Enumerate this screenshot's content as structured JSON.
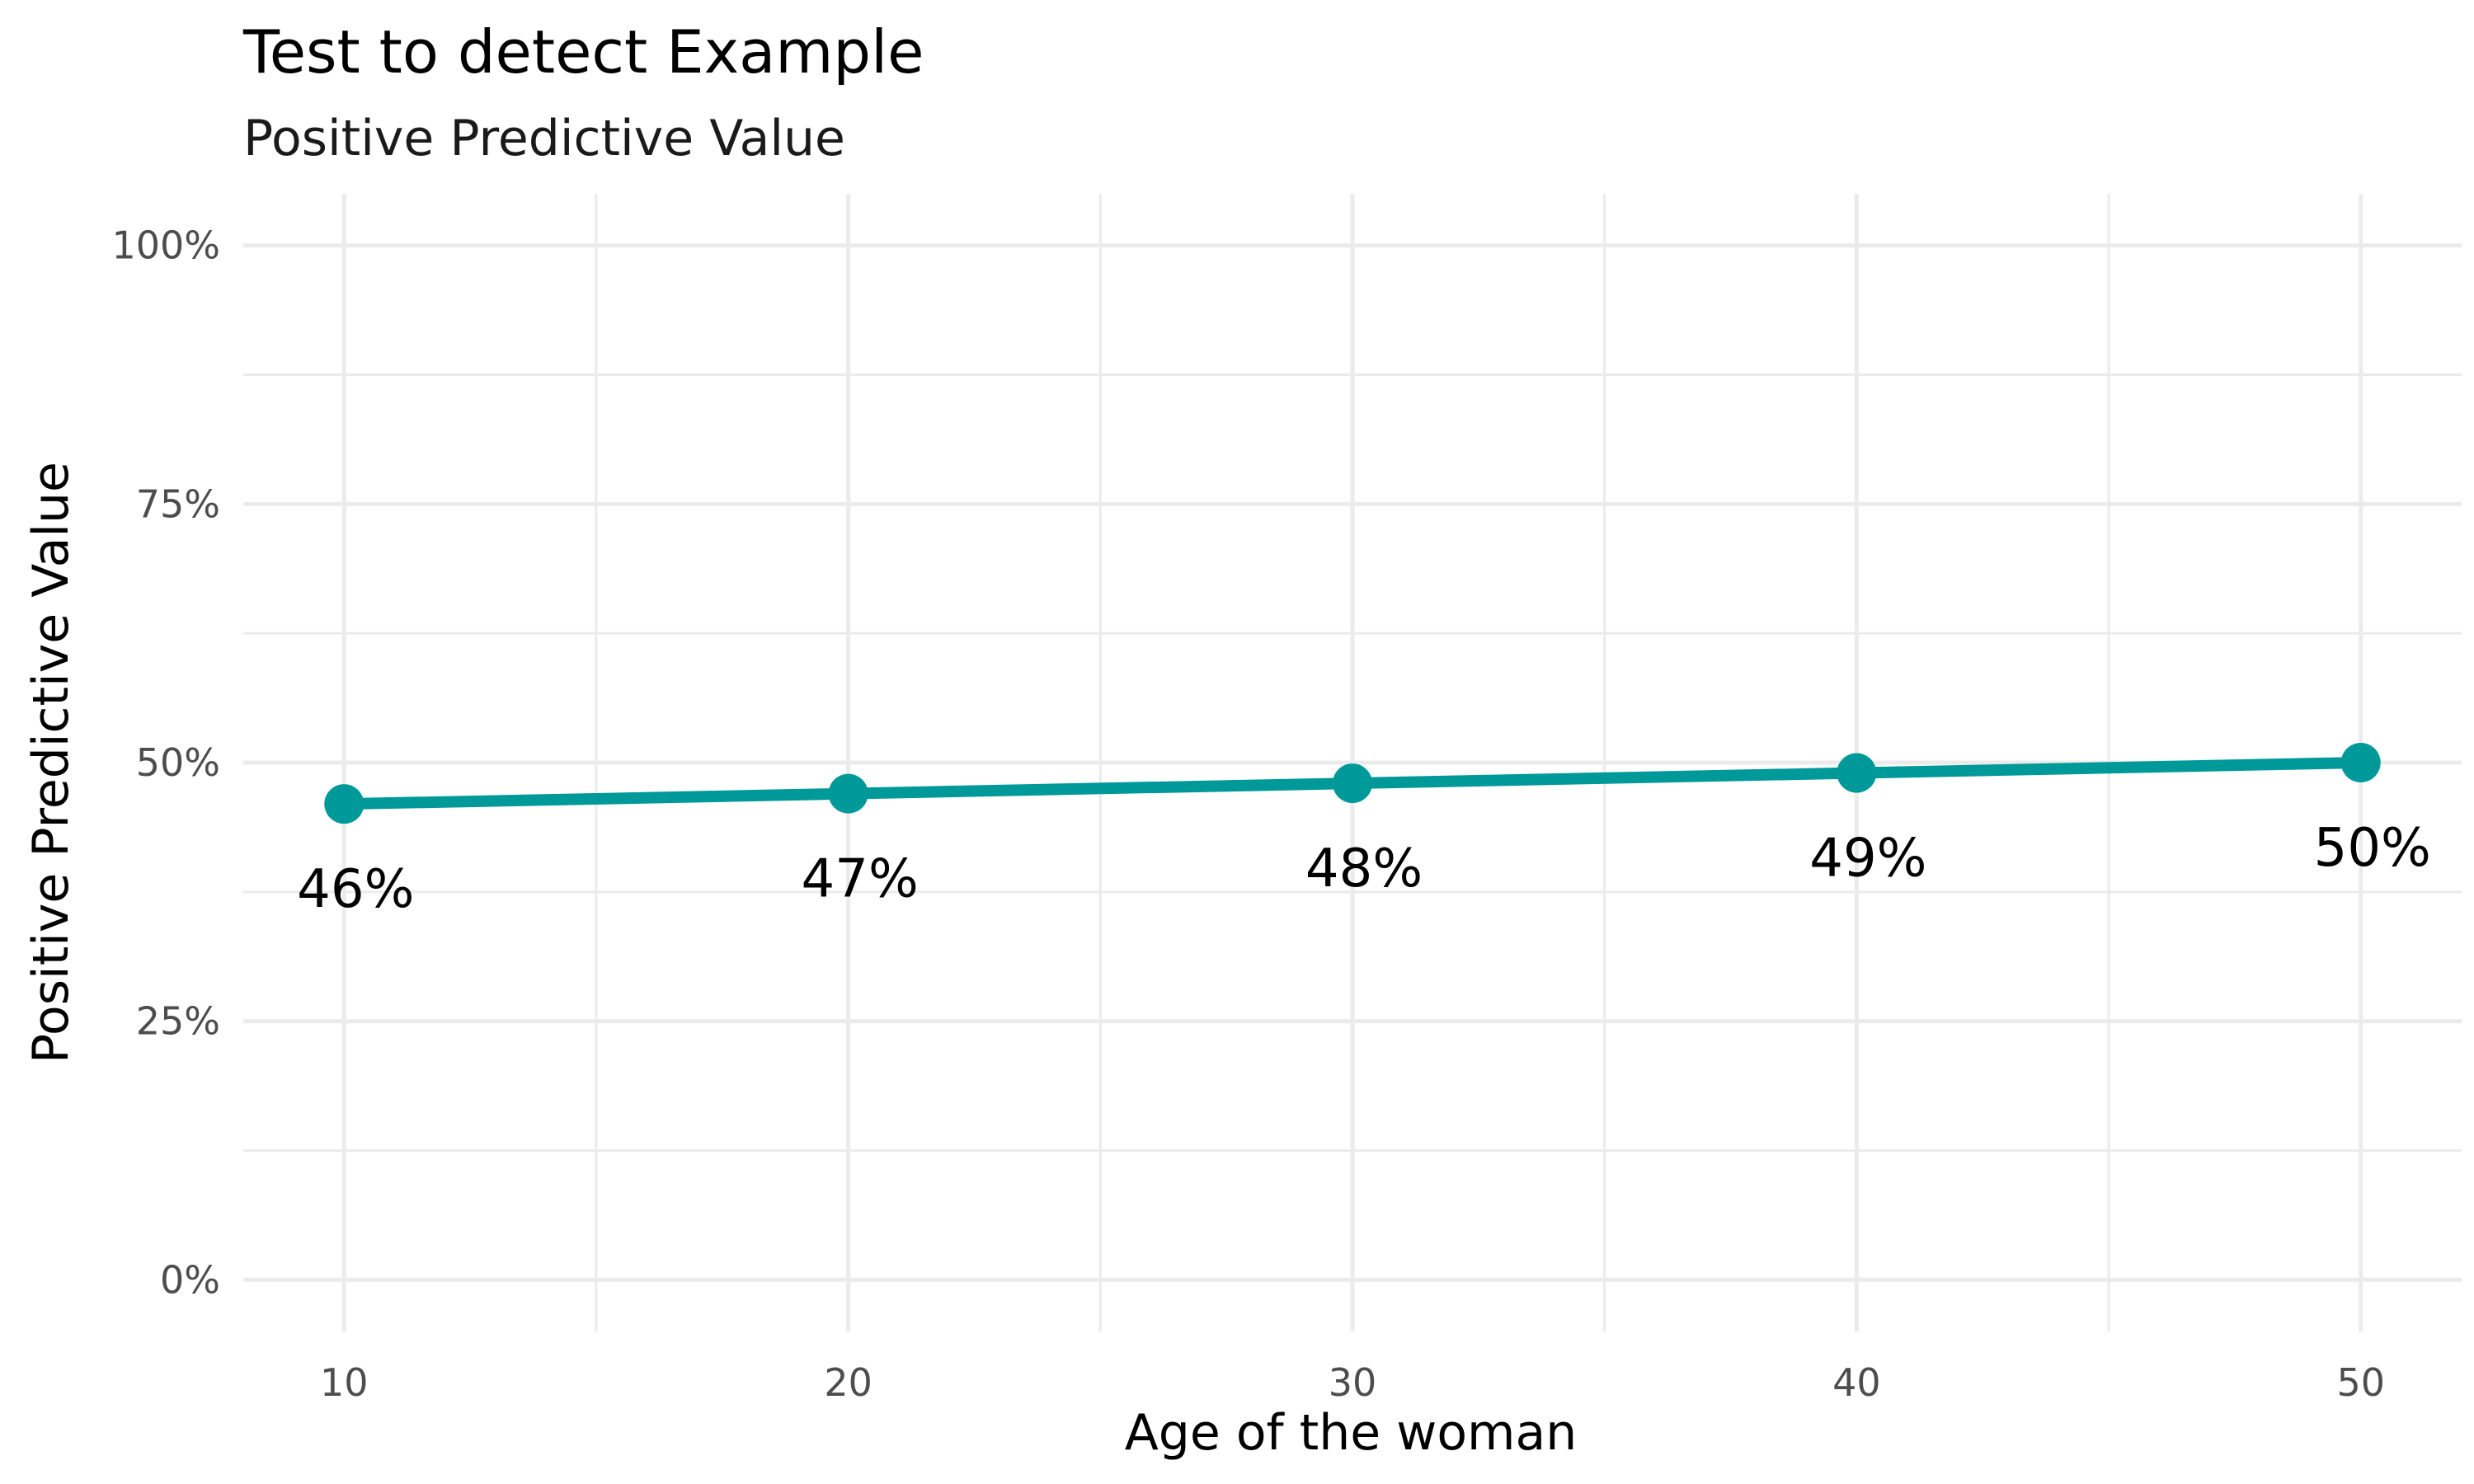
{
  "chart_data": {
    "type": "line",
    "title": "Test to detect Example",
    "subtitle": "Positive Predictive Value",
    "xlabel": "Age of the woman",
    "ylabel": "Positive Predictive Value",
    "xlim": [
      8,
      52
    ],
    "ylim": [
      -0.05,
      1.05
    ],
    "x_ticks": [
      10,
      20,
      30,
      40,
      50
    ],
    "x_tick_labels": [
      "10",
      "20",
      "30",
      "40",
      "50"
    ],
    "x_minor_ticks": [
      15,
      25,
      35,
      45
    ],
    "y_ticks": [
      0,
      0.25,
      0.5,
      0.75,
      1.0
    ],
    "y_tick_labels": [
      "0%",
      "25%",
      "50%",
      "75%",
      "100%"
    ],
    "y_minor_ticks": [
      0.125,
      0.375,
      0.625,
      0.875
    ],
    "grid": true,
    "legend": "none",
    "series": [
      {
        "x": [
          10,
          20,
          30,
          40,
          50
        ],
        "y": [
          0.46,
          0.47,
          0.48,
          0.49,
          0.5
        ],
        "labels": [
          "46%",
          "47%",
          "48%",
          "49%",
          "50%"
        ],
        "color": "#009999"
      }
    ]
  }
}
